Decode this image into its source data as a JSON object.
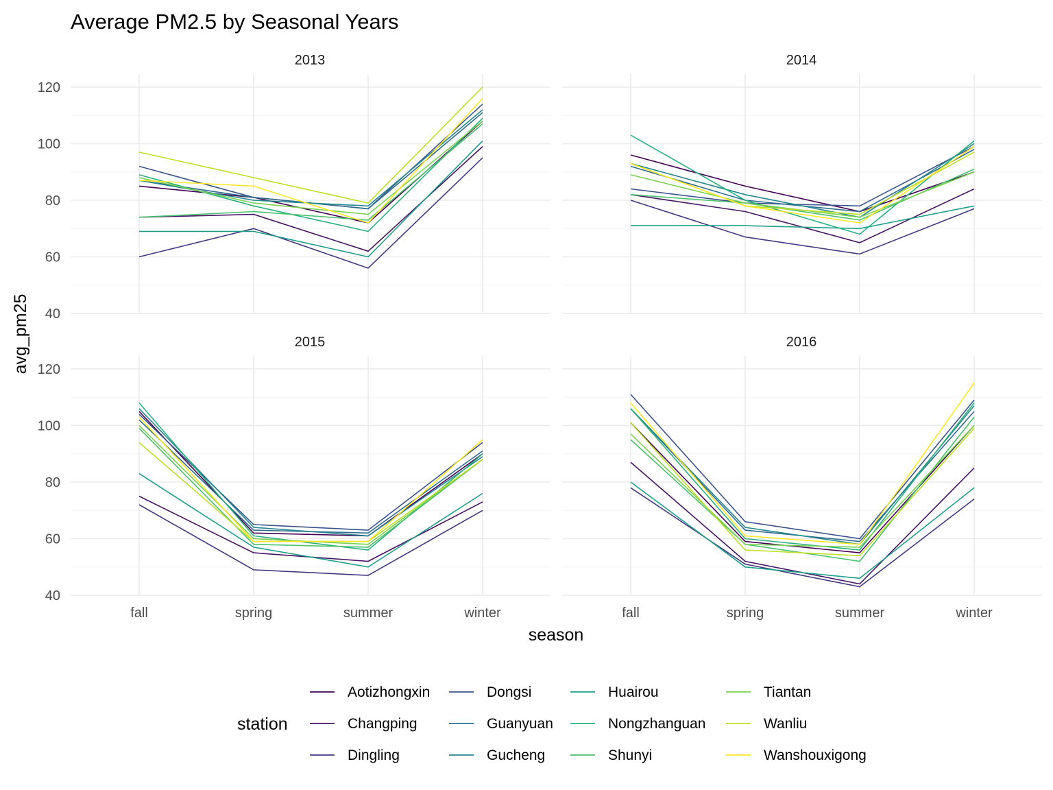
{
  "chart_data": {
    "type": "line",
    "title": "Average PM2.5 by Seasonal Years",
    "xlabel": "season",
    "ylabel": "avg_pm25",
    "ylim": [
      40,
      120
    ],
    "yticks": [
      "40",
      "60",
      "80",
      "100",
      "120"
    ],
    "categories": [
      "fall",
      "spring",
      "summer",
      "winter"
    ],
    "grid": true,
    "legend": {
      "title": "station",
      "placement": "bottom",
      "columns": 4
    },
    "stations": [
      {
        "name": "Aotizhongxin",
        "color": "#440154"
      },
      {
        "name": "Changping",
        "color": "#471365"
      },
      {
        "name": "Dingling",
        "color": "#453781"
      },
      {
        "name": "Dongsi",
        "color": "#3b528b"
      },
      {
        "name": "Guanyuan",
        "color": "#2f6c8e"
      },
      {
        "name": "Gucheng",
        "color": "#24868e"
      },
      {
        "name": "Huairou",
        "color": "#1f9e89"
      },
      {
        "name": "Nongzhanguan",
        "color": "#2ab07f"
      },
      {
        "name": "Shunyi",
        "color": "#4ac16d"
      },
      {
        "name": "Tiantan",
        "color": "#7ad151"
      },
      {
        "name": "Wanliu",
        "color": "#bddf26"
      },
      {
        "name": "Wanshouxigong",
        "color": "#fde725"
      }
    ],
    "facets": [
      {
        "label": "2013",
        "values": {
          "Aotizhongxin": [
            85,
            81,
            72,
            108
          ],
          "Changping": [
            74,
            75,
            62,
            99
          ],
          "Dingling": [
            60,
            70,
            56,
            95
          ],
          "Dongsi": [
            92,
            81,
            77,
            114
          ],
          "Guanyuan": [
            87,
            81,
            77,
            111
          ],
          "Gucheng": [
            87,
            80,
            78,
            112
          ],
          "Huairou": [
            69,
            69,
            60,
            101
          ],
          "Nongzhanguan": [
            89,
            78,
            69,
            109
          ],
          "Shunyi": [
            74,
            76,
            73,
            107
          ],
          "Tiantan": [
            88,
            79,
            75,
            108
          ],
          "Wanliu": [
            97,
            88,
            79,
            120
          ],
          "Wanshouxigong": [
            87,
            85,
            72,
            116
          ]
        }
      },
      {
        "label": "2014",
        "values": {
          "Aotizhongxin": [
            96,
            85,
            76,
            90
          ],
          "Changping": [
            82,
            76,
            65,
            84
          ],
          "Dingling": [
            80,
            67,
            61,
            77
          ],
          "Dongsi": [
            84,
            79,
            78,
            99
          ],
          "Guanyuan": [
            92,
            80,
            76,
            98
          ],
          "Gucheng": [
            93,
            82,
            74,
            100
          ],
          "Huairou": [
            71,
            71,
            70,
            78
          ],
          "Nongzhanguan": [
            103,
            80,
            68,
            101
          ],
          "Shunyi": [
            82,
            79,
            73,
            91
          ],
          "Tiantan": [
            89,
            79,
            74,
            90
          ],
          "Wanliu": [
            93,
            78,
            75,
            97
          ],
          "Wanshouxigong": [
            93,
            78,
            72,
            99
          ]
        }
      },
      {
        "label": "2015",
        "values": {
          "Aotizhongxin": [
            105,
            62,
            61,
            90
          ],
          "Changping": [
            75,
            55,
            52,
            73
          ],
          "Dingling": [
            72,
            49,
            47,
            70
          ],
          "Dongsi": [
            104,
            65,
            63,
            94
          ],
          "Guanyuan": [
            102,
            63,
            62,
            91
          ],
          "Gucheng": [
            106,
            64,
            61,
            89
          ],
          "Huairou": [
            83,
            57,
            50,
            76
          ],
          "Nongzhanguan": [
            108,
            61,
            56,
            90
          ],
          "Shunyi": [
            99,
            58,
            57,
            88
          ],
          "Tiantan": [
            100,
            60,
            58,
            88
          ],
          "Wanliu": [
            94,
            59,
            59,
            88
          ],
          "Wanshouxigong": [
            103,
            59,
            59,
            95
          ]
        }
      },
      {
        "label": "2016",
        "values": {
          "Aotizhongxin": [
            101,
            59,
            55,
            100
          ],
          "Changping": [
            87,
            52,
            44,
            85
          ],
          "Dingling": [
            78,
            51,
            43,
            74
          ],
          "Dongsi": [
            111,
            66,
            60,
            109
          ],
          "Guanyuan": [
            106,
            63,
            59,
            105
          ],
          "Gucheng": [
            106,
            64,
            58,
            107
          ],
          "Huairou": [
            80,
            50,
            46,
            78
          ],
          "Nongzhanguan": [
            106,
            60,
            56,
            108
          ],
          "Shunyi": [
            95,
            58,
            52,
            103
          ],
          "Tiantan": [
            97,
            58,
            57,
            100
          ],
          "Wanliu": [
            101,
            56,
            54,
            99
          ],
          "Wanshouxigong": [
            108,
            61,
            58,
            115
          ]
        }
      }
    ]
  }
}
